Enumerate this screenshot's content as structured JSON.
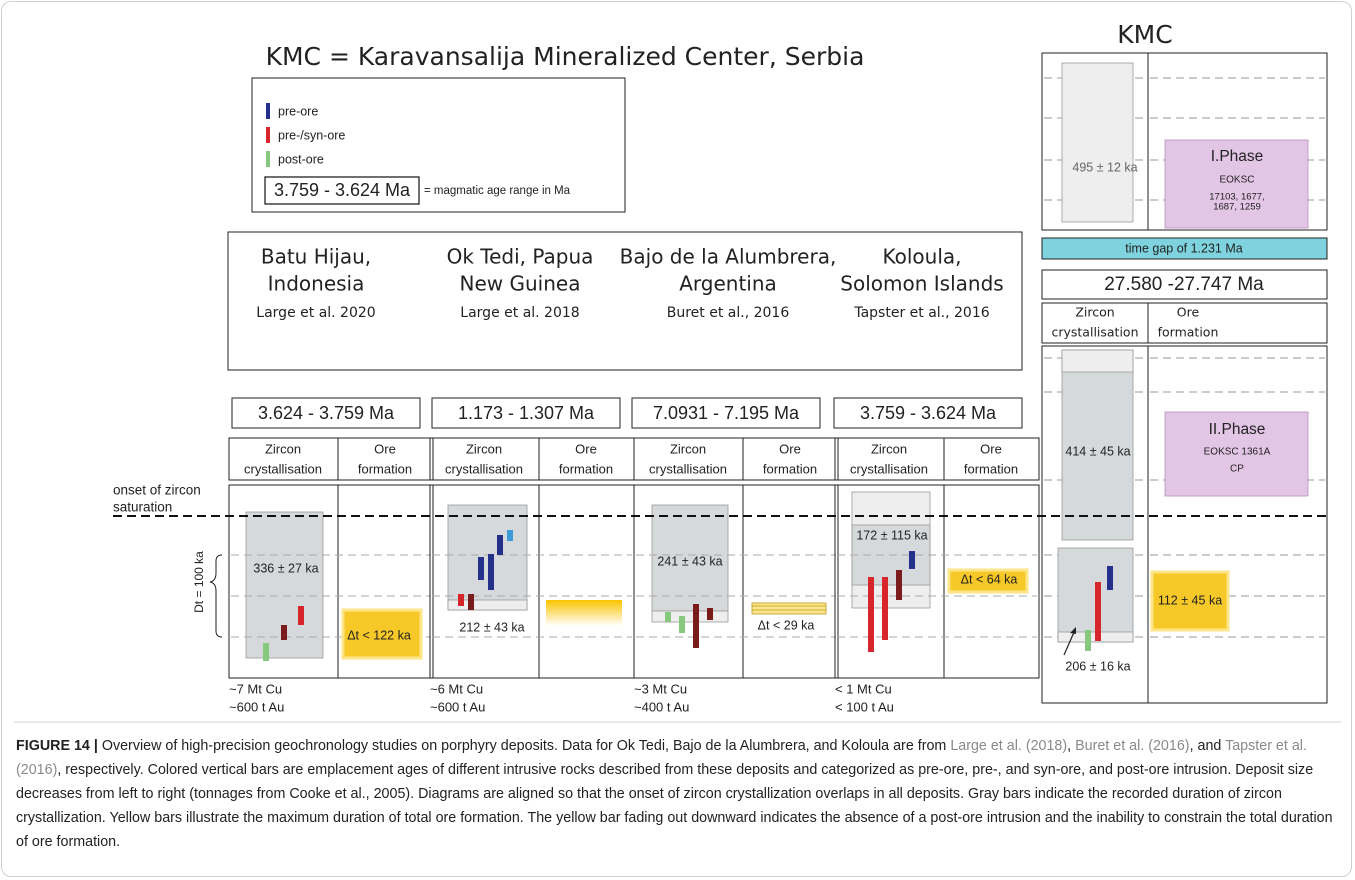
{
  "title": "KMC = Karavansalija Mineralized Center, Serbia",
  "legend": {
    "items": [
      "pre-ore",
      "pre-/syn-ore",
      "post-ore"
    ],
    "range_example": "3.759 - 3.624 Ma",
    "range_note": "= magmatic age range in Ma"
  },
  "side_labels": {
    "onset": [
      "onset of zircon",
      "saturation"
    ],
    "dt": "Dt = 100 ka"
  },
  "column_headers": {
    "zircon": [
      "Zircon",
      "crystallisation"
    ],
    "ore": [
      "Ore",
      "formation"
    ]
  },
  "deposits": [
    {
      "name": [
        "Batu Hijau,",
        "Indonesia"
      ],
      "reference": "Large et al. 2020",
      "age_range": "3.624 - 3.759 Ma",
      "zircon_duration": "336 ± 27 ka",
      "ore_duration": "Δt < 122 ka",
      "size": [
        "~7 Mt Cu",
        "~600 t Au"
      ]
    },
    {
      "name": [
        "Ok Tedi, Papua",
        "New Guinea"
      ],
      "reference": "Large et al. 2018",
      "age_range": "1.173 - 1.307 Ma",
      "zircon_duration": "212 ± 43 ka",
      "size": [
        "~6 Mt Cu",
        "~600 t Au"
      ]
    },
    {
      "name": [
        "Bajo de la Alumbrera,",
        "Argentina"
      ],
      "reference": "Buret et al., 2016",
      "age_range": "7.0931 - 7.195 Ma",
      "zircon_duration": "241 ± 43 ka",
      "ore_duration": "Δt < 29 ka",
      "size": [
        "~3 Mt Cu",
        "~400 t Au"
      ]
    },
    {
      "name": [
        "Koloula,",
        "Solomon Islands"
      ],
      "reference": "Tapster et al., 2016",
      "age_range": "3.759 - 3.624 Ma",
      "zircon_duration": "172 ± 115 ka",
      "ore_duration": "Δt < 64 ka",
      "size": [
        "< 1 Mt Cu",
        "< 100 t Au"
      ]
    }
  ],
  "kmc": {
    "title": "KMC",
    "phase1": {
      "zircon_duration": "495 ± 12 ka",
      "label": "I.Phase",
      "sample_lines": [
        "EOKSC",
        "17103, 1677,",
        "1687, 1259"
      ]
    },
    "time_gap": "time gap of 1.231 Ma",
    "age_range": "27.580 -27.747 Ma",
    "phase2": {
      "zircon_duration": "414 ± 45 ka",
      "label": "II.Phase",
      "sample_lines": [
        "EOKSC 1361A",
        "CP"
      ],
      "late_zircon_duration": "206 ± 16 ka",
      "ore_duration": "112 ± 45 ka"
    }
  },
  "caption": {
    "label": "FIGURE 14 |",
    "intro": " Overview of high-precision geochronology studies on porphyry deposits. Data for Ok Tedi, Bajo de la Alumbrera, and Koloula are from ",
    "reference_1": "Large et al. (2018)",
    "sep_1": ", ",
    "reference_2": "Buret et al. (2016)",
    "sep_2": ", and ",
    "reference_3": "Tapster et al. (2016)",
    "body": ", respectively. Colored vertical bars are emplacement ages of different intrusive rocks described from these deposits and categorized as pre-ore, pre-, and syn-ore, and post-ore intrusion. Deposit size decreases from left to right (tonnages from Cooke et al., 2005). Diagrams are aligned so that the onset of zircon crystallization overlaps in all deposits. Gray bars indicate the recorded duration of zircon crystallization. Yellow bars illustrate the maximum duration of total ore formation. The yellow bar fading out downward indicates the absence of a post-ore intrusion and the inability to constrain the total duration of ore formation."
  }
}
